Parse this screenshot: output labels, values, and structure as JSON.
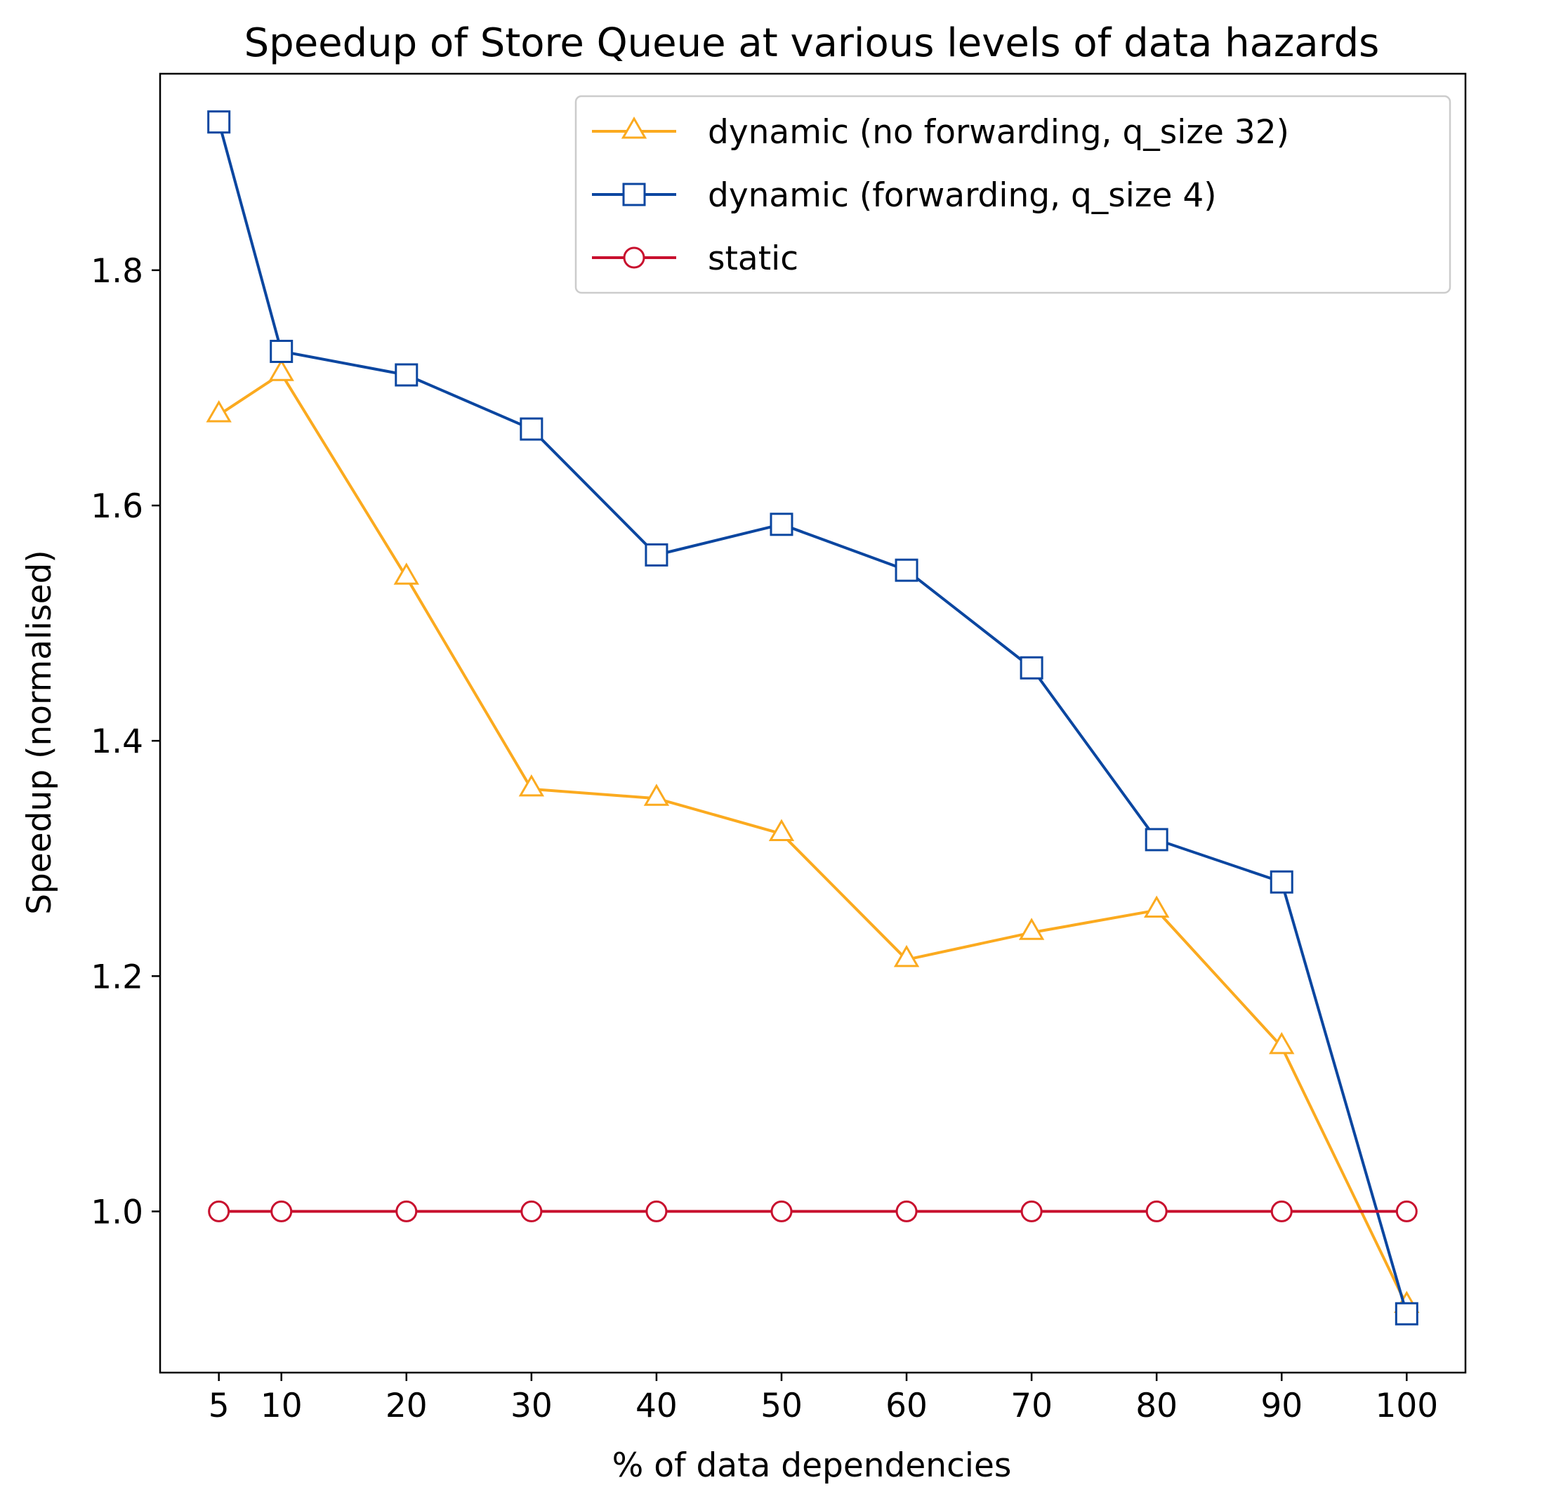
{
  "chart_data": {
    "type": "line",
    "title": "Speedup of Store Queue at various levels of data hazards",
    "xlabel": "% of data dependencies",
    "ylabel": "Speedup (normalised)",
    "x": [
      5,
      10,
      20,
      30,
      40,
      50,
      60,
      70,
      80,
      90,
      100
    ],
    "x_ticks": [
      5,
      10,
      20,
      30,
      40,
      50,
      60,
      70,
      80,
      90,
      100
    ],
    "y_ticks": [
      1.0,
      1.2,
      1.4,
      1.6,
      1.8
    ],
    "xlim": [
      0.3,
      104.7
    ],
    "ylim": [
      0.863,
      1.967
    ],
    "grid": false,
    "legend_position": "top-right",
    "series": [
      {
        "name": "dynamic (no forwarding, q_size 32)",
        "color": "#FBAA1F",
        "marker": "triangle",
        "values": [
          1.677,
          1.712,
          1.539,
          1.359,
          1.351,
          1.321,
          1.214,
          1.237,
          1.256,
          1.14,
          0.92
        ]
      },
      {
        "name": "dynamic (forwarding, q_size 4)",
        "color": "#0B46A0",
        "marker": "square",
        "values": [
          1.926,
          1.731,
          1.711,
          1.665,
          1.558,
          1.584,
          1.545,
          1.462,
          1.316,
          1.28,
          0.913
        ]
      },
      {
        "name": "static",
        "color": "#C8102E",
        "marker": "circle",
        "values": [
          1.0,
          1.0,
          1.0,
          1.0,
          1.0,
          1.0,
          1.0,
          1.0,
          1.0,
          1.0,
          1.0
        ]
      }
    ]
  }
}
